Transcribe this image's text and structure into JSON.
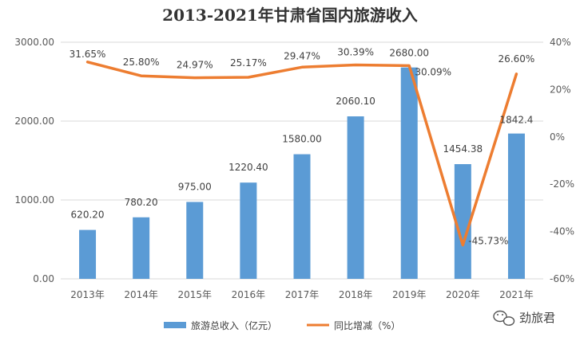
{
  "chart_data": {
    "type": "bar+line",
    "title": "2013-2021年甘肃省国内旅游收入",
    "categories": [
      "2013年",
      "2014年",
      "2015年",
      "2016年",
      "2017年",
      "2018年",
      "2019年",
      "2020年",
      "2021年"
    ],
    "series": [
      {
        "name": "旅游总收入（亿元）",
        "type": "bar",
        "axis": "left",
        "color": "#5B9BD5",
        "values": [
          620.2,
          780.2,
          975.0,
          1220.4,
          1580.0,
          2060.1,
          2680.0,
          1454.38,
          1842.4
        ],
        "labels": [
          "620.20",
          "780.20",
          "975.00",
          "1220.40",
          "1580.00",
          "2060.10",
          "2680.00",
          "1454.38",
          "1842.4"
        ]
      },
      {
        "name": "同比增减（%）",
        "type": "line",
        "axis": "right",
        "color": "#ED7D31",
        "values": [
          31.65,
          25.8,
          24.97,
          25.17,
          29.47,
          30.39,
          30.09,
          -45.73,
          26.6
        ],
        "labels": [
          "31.65%",
          "25.80%",
          "24.97%",
          "25.17%",
          "29.47%",
          "30.39%",
          "30.09%",
          "-45.73%",
          "26.60%"
        ]
      }
    ],
    "y_left": {
      "min": 0,
      "max": 3000,
      "ticks": [
        "0.00",
        "1000.00",
        "2000.00",
        "3000.00"
      ]
    },
    "y_right": {
      "min": -60,
      "max": 40,
      "ticks": [
        "-60%",
        "-40%",
        "-20%",
        "0%",
        "20%",
        "40%"
      ]
    },
    "grid": true,
    "legend": "bottom"
  },
  "watermark": {
    "text": "劲旅君",
    "icon": "wechat-icon"
  }
}
